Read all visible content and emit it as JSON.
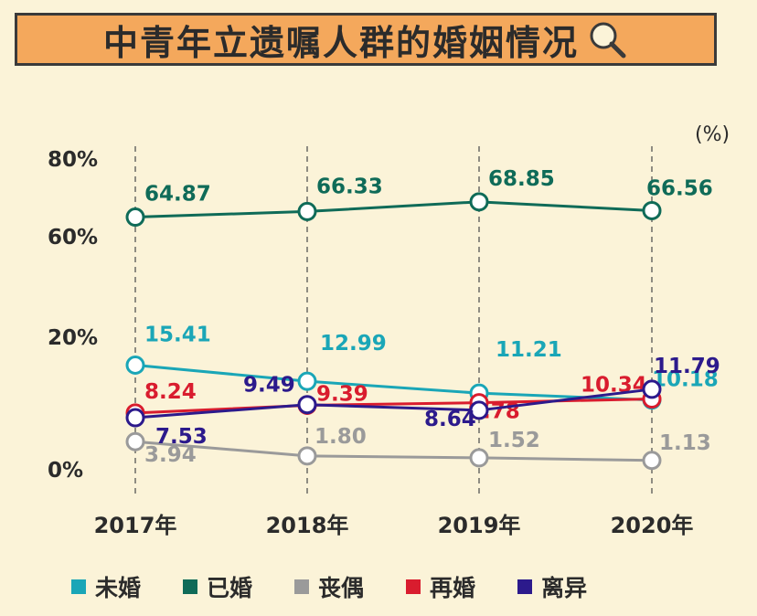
{
  "title": "中青年立遗嘱人群的婚姻情况",
  "icon": "magnifier-icon",
  "chart_data": {
    "type": "line",
    "unit_label": "(%)",
    "categories": [
      "2017年",
      "2018年",
      "2019年",
      "2020年"
    ],
    "y_ticks": [
      "80%",
      "60%",
      "20%",
      "0%"
    ],
    "y_axis_break": true,
    "grid": "vertical dashed lines at each category",
    "legend_position": "bottom",
    "series": [
      {
        "name": "未婚",
        "color": "#1aa6b7",
        "values": [
          15.41,
          12.99,
          11.21,
          10.18
        ],
        "labels": [
          "15.41",
          "12.99",
          "11.21",
          "10.18"
        ]
      },
      {
        "name": "已婚",
        "color": "#0f6b58",
        "values": [
          64.87,
          66.33,
          68.85,
          66.56
        ],
        "labels": [
          "64.87",
          "66.33",
          "68.85",
          "66.56"
        ]
      },
      {
        "name": "丧偶",
        "color": "#9a9a9a",
        "values": [
          3.94,
          1.8,
          1.52,
          1.13
        ],
        "labels": [
          "3.94",
          "1.80",
          "1.52",
          "1.13"
        ]
      },
      {
        "name": "再婚",
        "color": "#d91c2e",
        "values": [
          8.24,
          9.39,
          9.78,
          10.34
        ],
        "labels": [
          "8.24",
          "9.39",
          "9.78",
          "10.34"
        ]
      },
      {
        "name": "离异",
        "color": "#2c1a8c",
        "values": [
          7.53,
          9.49,
          8.64,
          11.79
        ],
        "labels": [
          "7.53",
          "9.49",
          "8.64",
          "11.79"
        ]
      }
    ]
  }
}
